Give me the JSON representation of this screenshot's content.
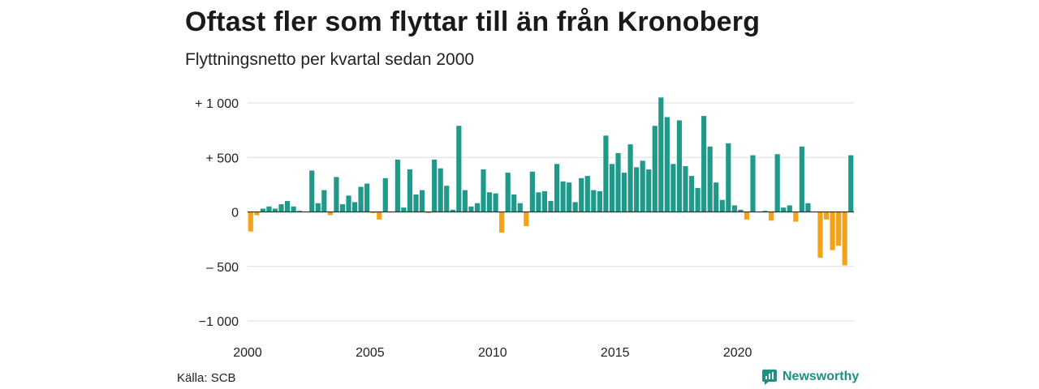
{
  "header": {
    "title": "Oftast fler som flyttar till än från Kronoberg",
    "subtitle": "Flyttningsnetto per kvartal sedan 2000"
  },
  "footer": {
    "source": "Källa: SCB",
    "brand": "Newsworthy"
  },
  "colors": {
    "positive": "#1f9a8a",
    "negative": "#f5a21b",
    "grid": "#dddddd",
    "zero_line": "#333333",
    "brand": "#1f8f84"
  },
  "chart_data": {
    "type": "bar",
    "title": "Oftast fler som flyttar till än från Kronoberg",
    "subtitle": "Flyttningsnetto per kvartal sedan 2000",
    "xlabel": "",
    "ylabel": "",
    "ylim": [
      -1000,
      1000
    ],
    "y_ticks": [
      {
        "value": 1000,
        "label": "+ 1 000"
      },
      {
        "value": 500,
        "label": "+   500"
      },
      {
        "value": 0,
        "label": "0"
      },
      {
        "value": -500,
        "label": "–   500"
      },
      {
        "value": -1000,
        "label": "−1 000"
      }
    ],
    "x_ticks": [
      {
        "year": 2000,
        "label": "2000"
      },
      {
        "year": 2005,
        "label": "2005"
      },
      {
        "year": 2010,
        "label": "2010"
      },
      {
        "year": 2015,
        "label": "2015"
      },
      {
        "year": 2020,
        "label": "2020"
      }
    ],
    "start_year": 2000,
    "grid": true,
    "series": [
      {
        "values": [
          -180,
          -30,
          30,
          50,
          30,
          70,
          100,
          50,
          10,
          0,
          380,
          80,
          200,
          -30,
          320,
          70,
          150,
          90,
          230,
          260,
          -10,
          -70,
          310,
          0,
          480,
          40,
          390,
          160,
          200,
          -10,
          480,
          400,
          240,
          20,
          790,
          200,
          50,
          80,
          390,
          180,
          170,
          -190,
          360,
          160,
          80,
          -130,
          370,
          180,
          190,
          100,
          440,
          280,
          270,
          90,
          310,
          330,
          200,
          190,
          700,
          440,
          540,
          360,
          620,
          410,
          470,
          390,
          790,
          1050,
          870,
          440,
          840,
          420,
          330,
          220,
          880,
          600,
          270,
          110,
          630,
          60,
          20,
          -70,
          520,
          0,
          10,
          -80,
          530,
          40,
          60,
          -90,
          600,
          80,
          0,
          -420,
          -70,
          -350,
          -310,
          -490,
          520
        ]
      }
    ]
  }
}
